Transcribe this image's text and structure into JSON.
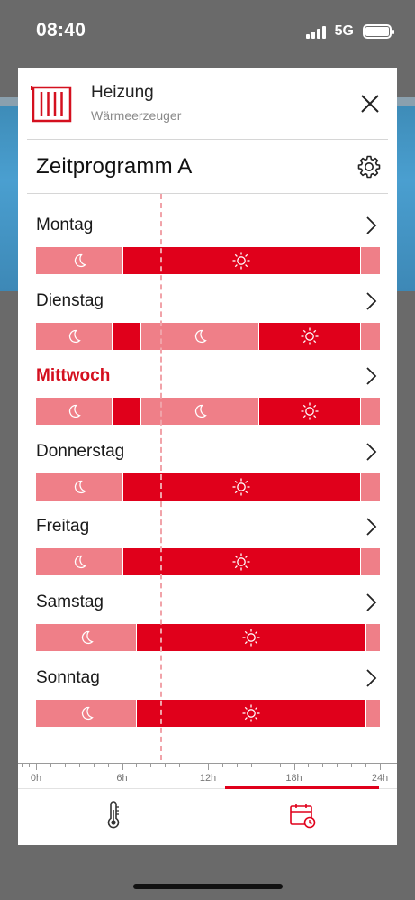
{
  "status_bar": {
    "time": "08:40",
    "network": "5G"
  },
  "header": {
    "title": "Heizung",
    "subtitle": "Wärmeerzeuger",
    "heater_icon": "radiator-icon",
    "close_icon": "close-icon"
  },
  "program": {
    "title": "Zeitprogramm A",
    "settings_icon": "gear-icon"
  },
  "days": [
    {
      "name": "Montag",
      "active": false,
      "segments": [
        {
          "start": 0,
          "end": 6,
          "mode": "night"
        },
        {
          "start": 6,
          "end": 22.6,
          "mode": "day"
        },
        {
          "start": 22.6,
          "end": 24,
          "mode": "night"
        }
      ]
    },
    {
      "name": "Dienstag",
      "active": false,
      "segments": [
        {
          "start": 0,
          "end": 5.3,
          "mode": "night"
        },
        {
          "start": 5.3,
          "end": 7.3,
          "mode": "day"
        },
        {
          "start": 7.3,
          "end": 15.5,
          "mode": "night"
        },
        {
          "start": 15.5,
          "end": 22.6,
          "mode": "day"
        },
        {
          "start": 22.6,
          "end": 24,
          "mode": "night"
        }
      ]
    },
    {
      "name": "Mittwoch",
      "active": true,
      "segments": [
        {
          "start": 0,
          "end": 5.3,
          "mode": "night"
        },
        {
          "start": 5.3,
          "end": 7.3,
          "mode": "day"
        },
        {
          "start": 7.3,
          "end": 15.5,
          "mode": "night"
        },
        {
          "start": 15.5,
          "end": 22.6,
          "mode": "day"
        },
        {
          "start": 22.6,
          "end": 24,
          "mode": "night"
        }
      ]
    },
    {
      "name": "Donnerstag",
      "active": false,
      "segments": [
        {
          "start": 0,
          "end": 6,
          "mode": "night"
        },
        {
          "start": 6,
          "end": 22.6,
          "mode": "day"
        },
        {
          "start": 22.6,
          "end": 24,
          "mode": "night"
        }
      ]
    },
    {
      "name": "Freitag",
      "active": false,
      "segments": [
        {
          "start": 0,
          "end": 6,
          "mode": "night"
        },
        {
          "start": 6,
          "end": 22.6,
          "mode": "day"
        },
        {
          "start": 22.6,
          "end": 24,
          "mode": "night"
        }
      ]
    },
    {
      "name": "Samstag",
      "active": false,
      "segments": [
        {
          "start": 0,
          "end": 7,
          "mode": "night"
        },
        {
          "start": 7,
          "end": 23,
          "mode": "day"
        },
        {
          "start": 23,
          "end": 24,
          "mode": "night"
        }
      ]
    },
    {
      "name": "Sonntag",
      "active": false,
      "segments": [
        {
          "start": 0,
          "end": 7,
          "mode": "night"
        },
        {
          "start": 7,
          "end": 23,
          "mode": "day"
        },
        {
          "start": 23,
          "end": 24,
          "mode": "night"
        }
      ]
    }
  ],
  "current_time_hour": 8.67,
  "axis": {
    "labels": [
      "0h",
      "6h",
      "12h",
      "18h",
      "24h"
    ]
  },
  "tabs": [
    {
      "icon": "thermometer-icon",
      "active": false
    },
    {
      "icon": "calendar-clock-icon",
      "active": true
    }
  ],
  "colors": {
    "accent": "#e0001b",
    "night_segment": "#ef7f88",
    "day_segment": "#e0001b",
    "now_line": "#f1a3a9"
  }
}
